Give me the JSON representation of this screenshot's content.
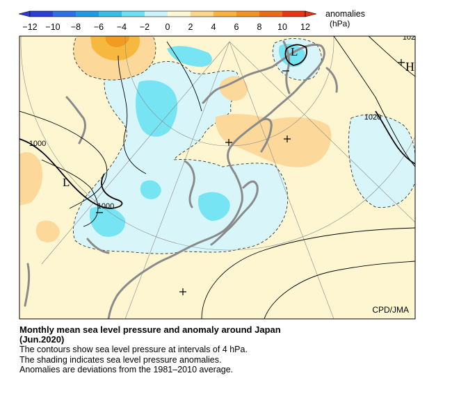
{
  "legend": {
    "title": "anomalies",
    "unit": "(hPa)",
    "ticks": [
      "−12",
      "−10",
      "−8",
      "−6",
      "−4",
      "−2",
      "0",
      "2",
      "4",
      "6",
      "8",
      "10",
      "12"
    ],
    "tick_values": [
      -12,
      -10,
      -8,
      -6,
      -4,
      -2,
      0,
      2,
      4,
      6,
      8,
      10,
      12
    ],
    "colors": [
      "#2b3fd4",
      "#2f6fe6",
      "#1f9be6",
      "#36bfe6",
      "#6ee0f2",
      "#c9f3f7",
      "#fff8d2",
      "#fbd68c",
      "#f7b23f",
      "#f29423",
      "#ec6b17",
      "#e63414"
    ]
  },
  "map": {
    "credit": "CPD/JMA",
    "contour_labels": [
      "1000",
      "1000",
      "1020",
      "102"
    ],
    "pressure_centers": [
      "L",
      "L",
      "H"
    ],
    "anomaly_colors": {
      "background": "#fef6d0",
      "weak_negative": "#d8f6fa",
      "moderate_negative": "#76e4f2",
      "weak_positive": "#fcd89a",
      "moderate_positive": "#f7b840",
      "strong_positive": "#f39a22",
      "coast": "#8a8a8a"
    },
    "contour_interval_hpa": 4
  },
  "caption": {
    "title": "Monthly mean sea level pressure and anomaly around Japan",
    "period": "(Jun.2020)",
    "lines": [
      "The contours show sea level pressure at intervals of 4 hPa.",
      "The shading indicates sea level pressure anomalies.",
      "Anomalies are deviations from the 1981–2010 average."
    ]
  }
}
